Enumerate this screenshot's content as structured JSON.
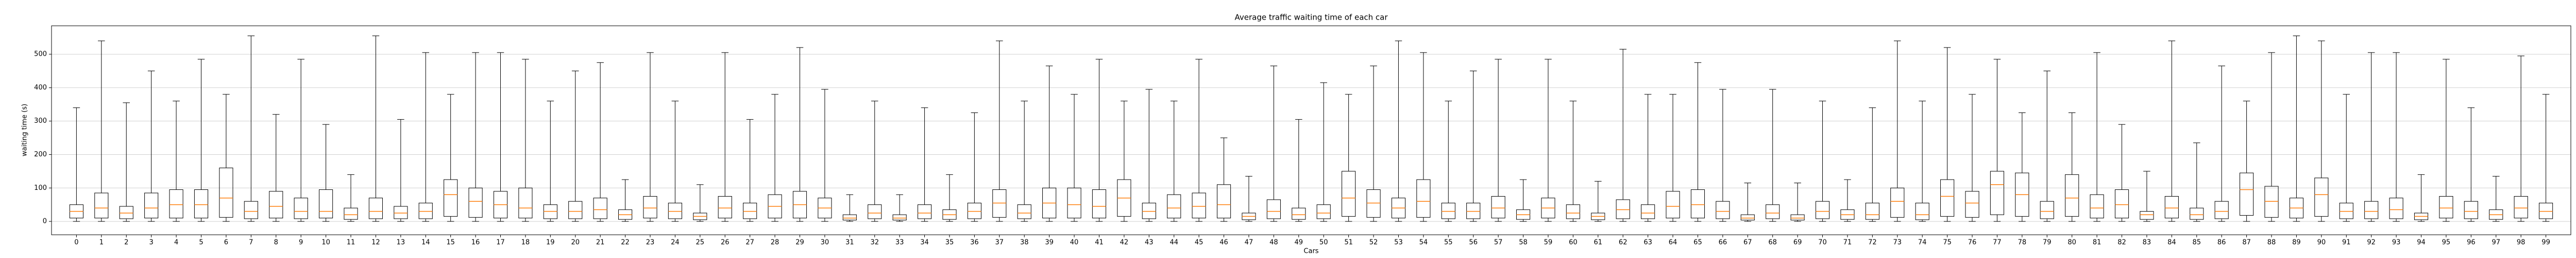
{
  "chart_data": {
    "type": "box",
    "title": "Average traffic waiting time of each car",
    "x_label": "Cars",
    "y_label": "waiting time (s)",
    "categories": [
      "0",
      "1",
      "2",
      "3",
      "4",
      "5",
      "6",
      "7",
      "8",
      "9",
      "10",
      "11",
      "12",
      "13",
      "14",
      "15",
      "16",
      "17",
      "18",
      "19",
      "20",
      "21",
      "22",
      "23",
      "24",
      "25",
      "26",
      "27",
      "28",
      "29",
      "30",
      "31",
      "32",
      "33",
      "34",
      "35",
      "36",
      "37",
      "38",
      "39",
      "40",
      "41",
      "42",
      "43",
      "44",
      "45",
      "46",
      "47",
      "48",
      "49",
      "50",
      "51",
      "52",
      "53",
      "54",
      "55",
      "56",
      "57",
      "58",
      "59",
      "60",
      "61",
      "62",
      "63",
      "64",
      "65",
      "66",
      "67",
      "68",
      "69",
      "70",
      "71",
      "72",
      "73",
      "74",
      "75",
      "76",
      "77",
      "78",
      "79",
      "80",
      "81",
      "82",
      "83",
      "84",
      "85",
      "86",
      "87",
      "88",
      "89",
      "90",
      "91",
      "92",
      "93",
      "94",
      "95",
      "96",
      "97",
      "98",
      "99"
    ],
    "whislo": [
      0,
      0,
      0,
      0,
      0,
      0,
      0,
      0,
      0,
      0,
      0,
      0,
      0,
      0,
      0,
      0,
      0,
      0,
      0,
      0,
      0,
      0,
      0,
      0,
      0,
      0,
      0,
      0,
      0,
      0,
      0,
      0,
      0,
      0,
      0,
      0,
      0,
      0,
      0,
      0,
      0,
      0,
      0,
      0,
      0,
      0,
      0,
      0,
      0,
      0,
      0,
      0,
      0,
      0,
      0,
      0,
      0,
      0,
      0,
      0,
      0,
      0,
      0,
      0,
      0,
      0,
      0,
      0,
      0,
      0,
      0,
      0,
      0,
      0,
      0,
      0,
      0,
      0,
      0,
      0,
      0,
      0,
      0,
      0,
      0,
      0,
      0,
      0,
      0,
      0,
      0,
      0,
      0,
      0,
      0,
      0,
      0,
      0,
      0,
      0
    ],
    "q1": [
      10,
      10,
      8,
      10,
      10,
      10,
      12,
      8,
      10,
      8,
      10,
      6,
      8,
      8,
      8,
      15,
      12,
      10,
      10,
      8,
      8,
      8,
      6,
      10,
      8,
      5,
      10,
      8,
      10,
      10,
      10,
      4,
      8,
      4,
      8,
      6,
      8,
      12,
      8,
      10,
      10,
      10,
      15,
      8,
      10,
      10,
      10,
      5,
      8,
      6,
      8,
      15,
      12,
      10,
      12,
      8,
      8,
      10,
      6,
      10,
      8,
      5,
      8,
      8,
      10,
      10,
      8,
      4,
      8,
      4,
      8,
      6,
      6,
      12,
      5,
      15,
      12,
      20,
      15,
      8,
      15,
      10,
      10,
      6,
      10,
      6,
      8,
      18,
      12,
      10,
      15,
      8,
      8,
      8,
      5,
      10,
      8,
      6,
      10,
      8
    ],
    "median": [
      30,
      40,
      25,
      40,
      50,
      50,
      70,
      30,
      45,
      30,
      30,
      20,
      30,
      25,
      30,
      80,
      60,
      50,
      40,
      30,
      30,
      35,
      20,
      40,
      30,
      15,
      40,
      30,
      45,
      50,
      40,
      10,
      25,
      10,
      25,
      20,
      30,
      55,
      25,
      55,
      50,
      45,
      70,
      30,
      40,
      45,
      50,
      15,
      30,
      20,
      25,
      70,
      55,
      40,
      60,
      30,
      30,
      40,
      20,
      40,
      25,
      15,
      35,
      25,
      45,
      50,
      30,
      10,
      25,
      10,
      30,
      20,
      20,
      60,
      20,
      75,
      55,
      110,
      80,
      30,
      70,
      40,
      50,
      20,
      40,
      20,
      30,
      95,
      60,
      40,
      80,
      30,
      30,
      35,
      15,
      40,
      30,
      20,
      40,
      30
    ],
    "q3": [
      50,
      85,
      45,
      85,
      95,
      95,
      160,
      60,
      90,
      70,
      95,
      40,
      70,
      45,
      55,
      125,
      100,
      90,
      100,
      50,
      60,
      70,
      35,
      75,
      55,
      25,
      75,
      55,
      80,
      90,
      70,
      20,
      50,
      20,
      50,
      35,
      55,
      95,
      50,
      100,
      100,
      95,
      125,
      55,
      80,
      85,
      110,
      25,
      65,
      40,
      50,
      150,
      95,
      70,
      125,
      55,
      55,
      75,
      35,
      70,
      50,
      25,
      65,
      50,
      90,
      95,
      60,
      20,
      50,
      20,
      60,
      35,
      55,
      100,
      55,
      125,
      90,
      150,
      145,
      60,
      140,
      80,
      95,
      30,
      75,
      40,
      60,
      145,
      105,
      70,
      130,
      55,
      60,
      70,
      25,
      75,
      60,
      35,
      75,
      55
    ],
    "whishi": [
      340,
      540,
      355,
      450,
      360,
      485,
      380,
      555,
      320,
      485,
      290,
      140,
      555,
      305,
      505,
      380,
      505,
      505,
      485,
      360,
      450,
      475,
      125,
      505,
      360,
      110,
      505,
      305,
      380,
      520,
      395,
      80,
      360,
      80,
      340,
      140,
      325,
      540,
      360,
      465,
      380,
      485,
      360,
      395,
      360,
      485,
      250,
      135,
      465,
      305,
      415,
      380,
      465,
      540,
      505,
      360,
      450,
      485,
      125,
      485,
      360,
      120,
      515,
      380,
      380,
      475,
      395,
      115,
      395,
      115,
      360,
      125,
      340,
      540,
      360,
      520,
      380,
      485,
      325,
      450,
      325,
      505,
      290,
      150,
      540,
      235,
      465,
      360,
      505,
      555,
      540,
      380,
      505,
      505,
      140,
      485,
      340,
      135,
      495,
      380
    ],
    "box_color": "#000000",
    "median_color": "#ff7f0e",
    "ylim": [
      -40,
      585
    ],
    "yticks": [
      0,
      100,
      200,
      300,
      400,
      500
    ],
    "grid": true
  }
}
